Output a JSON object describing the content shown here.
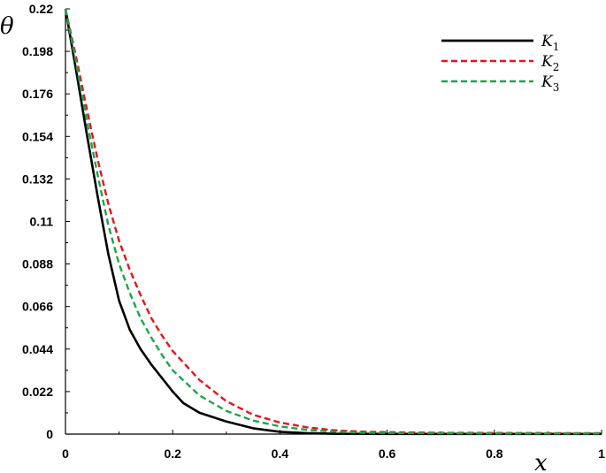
{
  "chart_data": {
    "type": "line",
    "xlabel": "x",
    "ylabel": "θ",
    "xlim": [
      0,
      1
    ],
    "ylim": [
      0,
      0.22
    ],
    "xticks": [
      "0",
      "0.2",
      "0.4",
      "0.6",
      "0.8",
      "1"
    ],
    "yticks": [
      "0",
      "0.022",
      "0.044",
      "0.066",
      "0.088",
      "0.11",
      "0.132",
      "0.154",
      "0.176",
      "0.198",
      "0.22"
    ],
    "grid": false,
    "legend_position": "top-right",
    "series": [
      {
        "name": "K",
        "subscript": "1",
        "color": "#000000",
        "dash": "solid",
        "x": [
          0,
          0.02,
          0.04,
          0.06,
          0.08,
          0.1,
          0.12,
          0.14,
          0.16,
          0.18,
          0.2,
          0.22,
          0.25,
          0.3,
          0.35,
          0.4,
          0.45,
          0.5,
          0.6,
          0.7,
          0.8,
          0.9,
          1.0
        ],
        "y": [
          0.22,
          0.188,
          0.155,
          0.123,
          0.093,
          0.069,
          0.054,
          0.044,
          0.036,
          0.029,
          0.022,
          0.016,
          0.011,
          0.0065,
          0.003,
          0.0012,
          0.0005,
          0.0002,
          0.0001,
          0.0001,
          0.0001,
          0.0001,
          0.0001
        ]
      },
      {
        "name": "K",
        "subscript": "2",
        "color": "#e8141b",
        "dash": "dashed",
        "x": [
          0,
          0.02,
          0.04,
          0.06,
          0.08,
          0.1,
          0.12,
          0.14,
          0.16,
          0.18,
          0.2,
          0.25,
          0.3,
          0.35,
          0.4,
          0.45,
          0.5,
          0.55,
          0.6,
          0.7,
          0.8,
          0.9,
          1.0
        ],
        "y": [
          0.22,
          0.195,
          0.168,
          0.142,
          0.119,
          0.1,
          0.085,
          0.072,
          0.06,
          0.051,
          0.043,
          0.028,
          0.017,
          0.01,
          0.006,
          0.0035,
          0.002,
          0.0013,
          0.001,
          0.0007,
          0.0006,
          0.0005,
          0.0005
        ]
      },
      {
        "name": "K",
        "subscript": "3",
        "color": "#1aa64a",
        "dash": "dashed",
        "x": [
          0,
          0.02,
          0.04,
          0.06,
          0.08,
          0.1,
          0.12,
          0.14,
          0.16,
          0.18,
          0.2,
          0.25,
          0.3,
          0.35,
          0.4,
          0.45,
          0.5,
          0.55,
          0.6,
          0.7,
          0.8,
          0.9,
          1.0
        ],
        "y": [
          0.22,
          0.192,
          0.162,
          0.134,
          0.108,
          0.088,
          0.073,
          0.06,
          0.05,
          0.041,
          0.033,
          0.02,
          0.012,
          0.007,
          0.004,
          0.0022,
          0.0013,
          0.0008,
          0.0006,
          0.0004,
          0.0003,
          0.0003,
          0.0003
        ]
      }
    ]
  }
}
